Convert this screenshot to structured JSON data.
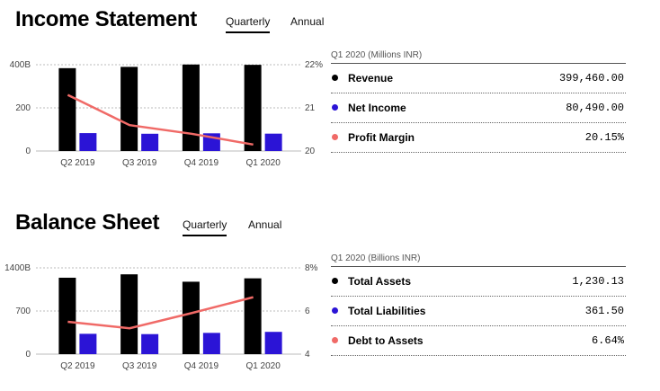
{
  "colors": {
    "black": "#000000",
    "blue": "#2b14d6",
    "red": "#f06a67"
  },
  "income": {
    "title": "Income Statement",
    "tabs": [
      {
        "label": "Quarterly",
        "active": true
      },
      {
        "label": "Annual",
        "active": false
      }
    ],
    "period": "Q1 2020 (Millions INR)",
    "rows": [
      {
        "label": "Revenue",
        "value": "399,460.00",
        "color": "#000000"
      },
      {
        "label": "Net Income",
        "value": "80,490.00",
        "color": "#2b14d6"
      },
      {
        "label": "Profit Margin",
        "value": "20.15%",
        "color": "#f06a67"
      }
    ]
  },
  "balance": {
    "title": "Balance Sheet",
    "tabs": [
      {
        "label": "Quarterly",
        "active": true
      },
      {
        "label": "Annual",
        "active": false
      }
    ],
    "period": "Q1 2020 (Billions INR)",
    "rows": [
      {
        "label": "Total Assets",
        "value": "1,230.13",
        "color": "#000000"
      },
      {
        "label": "Total Liabilities",
        "value": "361.50",
        "color": "#2b14d6"
      },
      {
        "label": "Debt to Assets",
        "value": "6.64%",
        "color": "#f06a67"
      }
    ]
  },
  "chart_data": [
    {
      "type": "bar",
      "categories": [
        "Q2 2019",
        "Q3 2019",
        "Q4 2019",
        "Q1 2020"
      ],
      "series": [
        {
          "values": [
            384,
            390,
            401,
            399.46
          ],
          "color": "#000000",
          "kind": "bar"
        },
        {
          "values": [
            83,
            80,
            82,
            80.49
          ],
          "color": "#2b14d6",
          "kind": "bar"
        },
        {
          "values": [
            21.3,
            20.6,
            20.4,
            20.15
          ],
          "color": "#f06a67",
          "kind": "line",
          "axis": "right"
        }
      ],
      "yticks_left": [
        "400B",
        "200",
        "0"
      ],
      "ylim_left": [
        0,
        400
      ],
      "yticks_right": [
        "22%",
        "21",
        "20"
      ],
      "ylim_right": [
        20,
        22
      ],
      "grid": true
    },
    {
      "type": "bar",
      "categories": [
        "Q2 2019",
        "Q3 2019",
        "Q4 2019",
        "Q1 2020"
      ],
      "series": [
        {
          "values": [
            1240,
            1295,
            1175,
            1230.13
          ],
          "color": "#000000",
          "kind": "bar"
        },
        {
          "values": [
            330,
            325,
            345,
            361.5
          ],
          "color": "#2b14d6",
          "kind": "bar"
        },
        {
          "values": [
            5.5,
            5.2,
            5.9,
            6.64
          ],
          "color": "#f06a67",
          "kind": "line",
          "axis": "right"
        }
      ],
      "yticks_left": [
        "1400B",
        "700",
        "0"
      ],
      "ylim_left": [
        0,
        1400
      ],
      "yticks_right": [
        "8%",
        "6",
        "4"
      ],
      "ylim_right": [
        4,
        8
      ],
      "grid": true
    }
  ]
}
